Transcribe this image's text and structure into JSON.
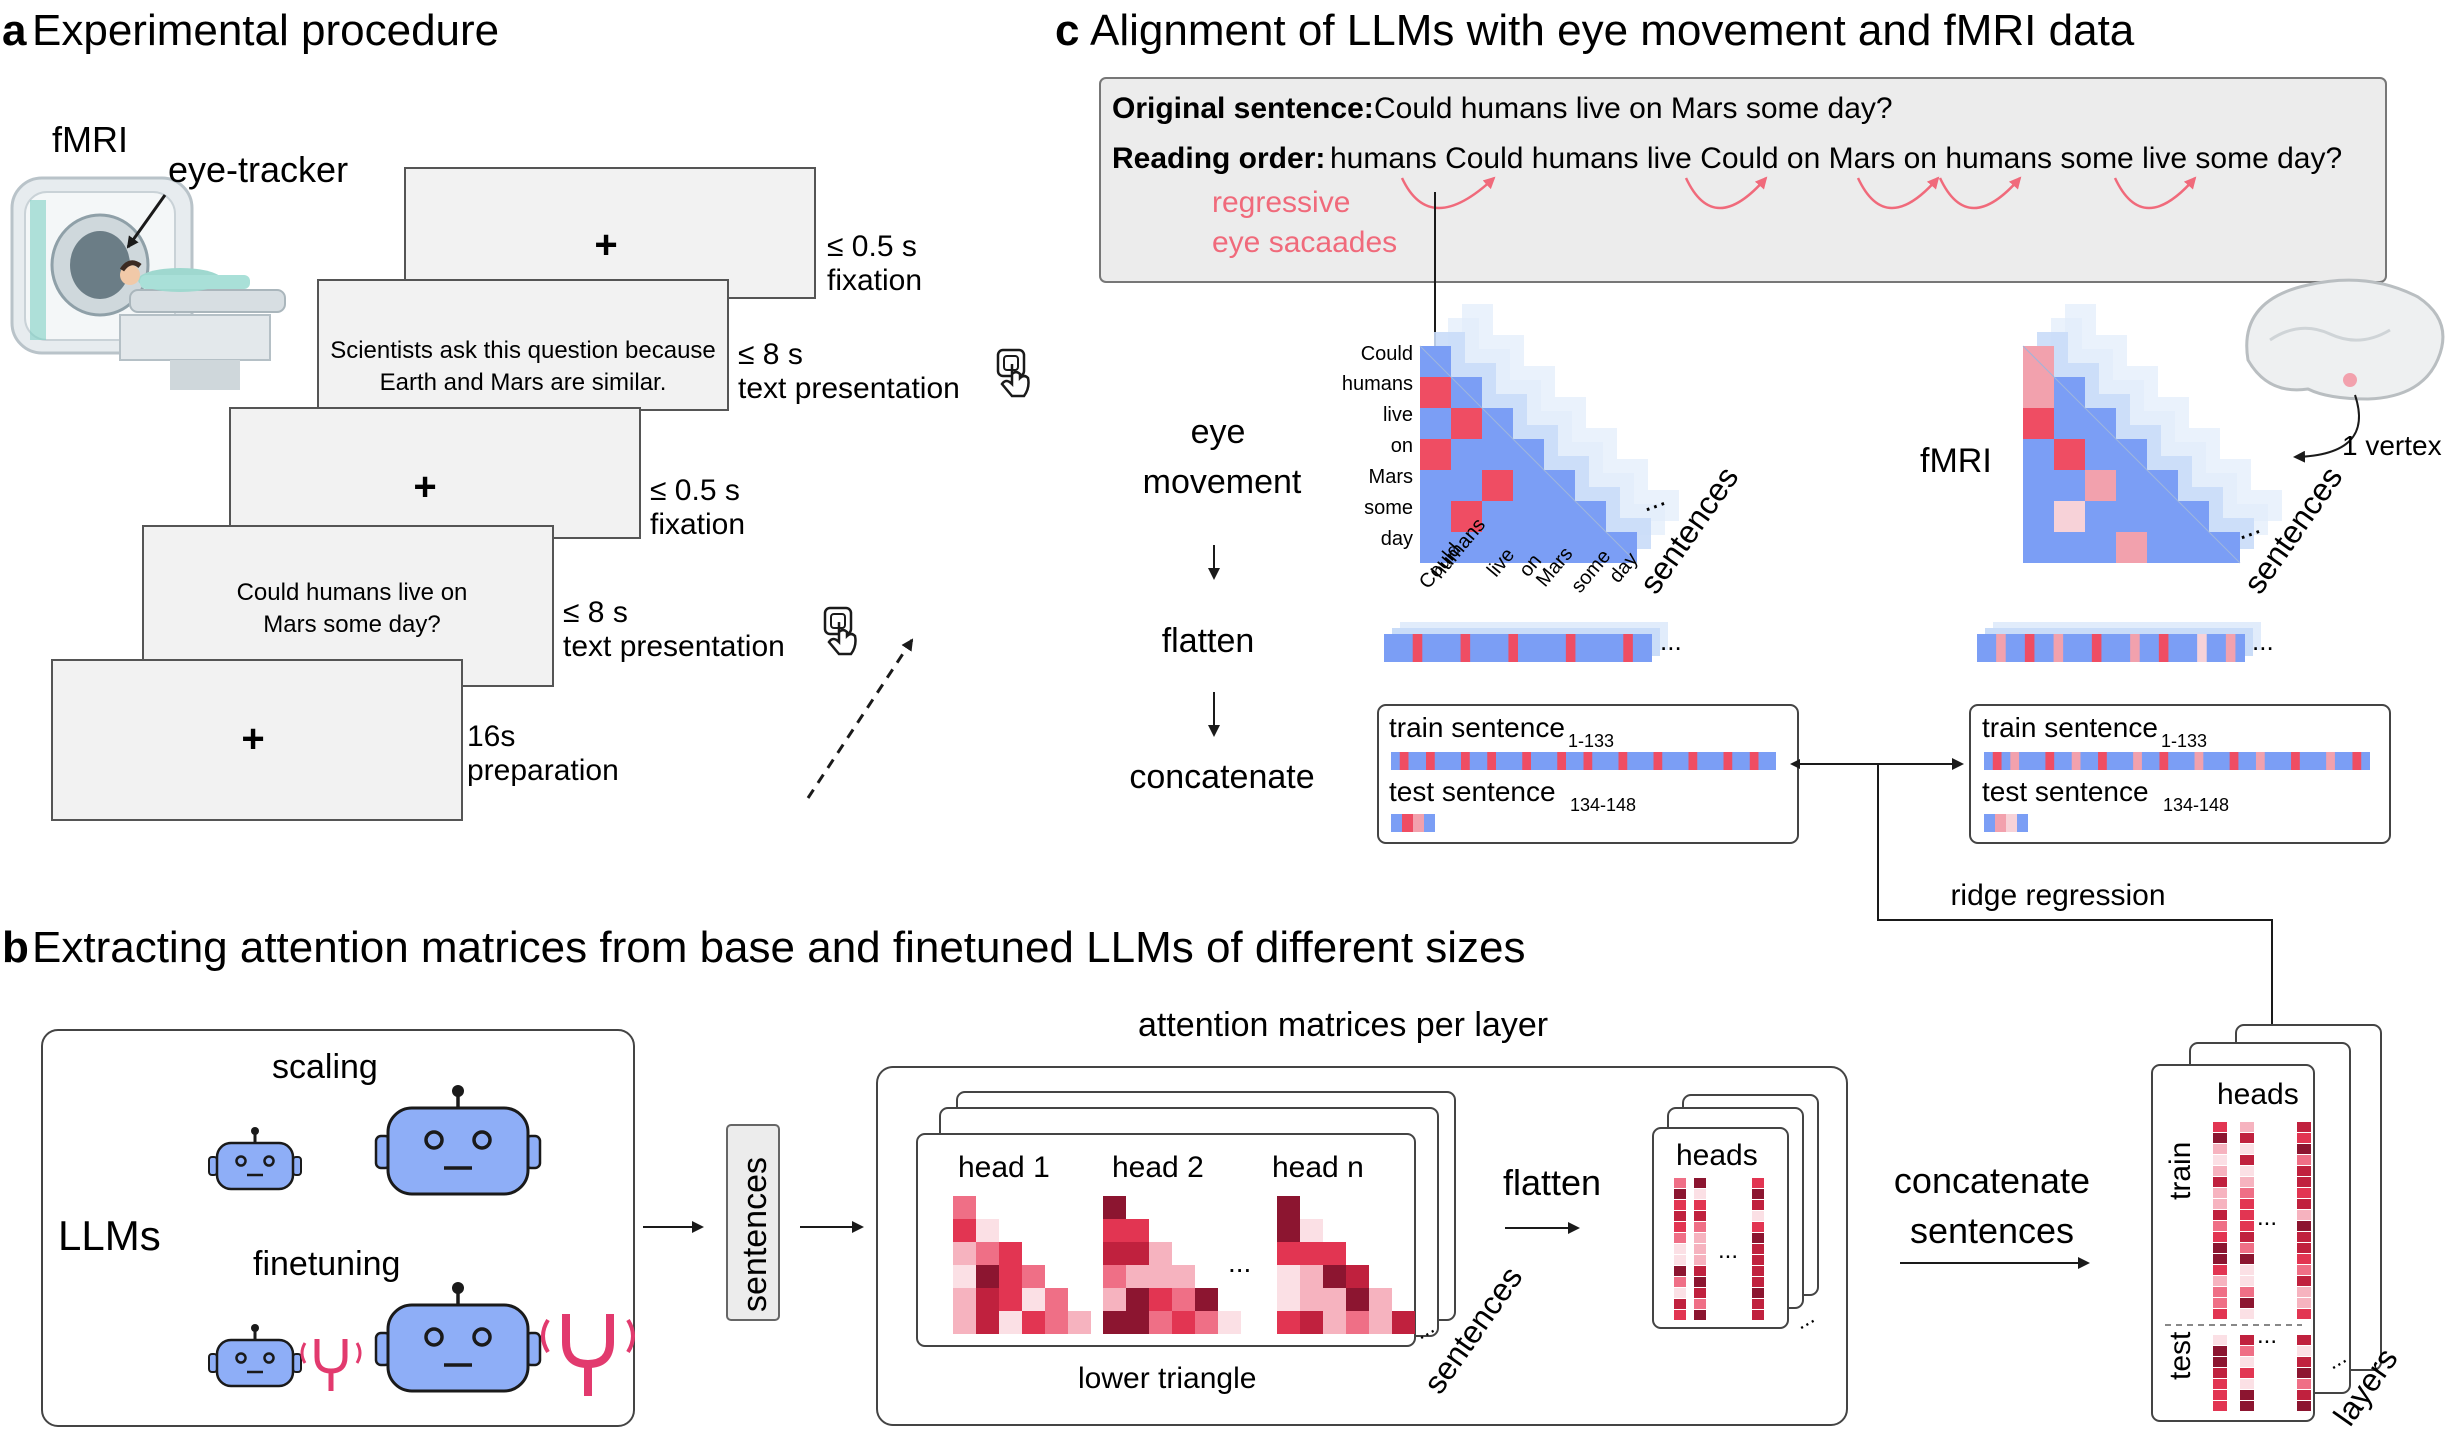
{
  "panels": {
    "a": {
      "letter": "a",
      "title": "Experimental procedure"
    },
    "b": {
      "letter": "b",
      "title": "Extracting attention matrices from base and finetuned LLMs of different sizes"
    },
    "c": {
      "letter": "c",
      "title": "Alignment of LLMs with eye movement and fMRI data"
    }
  },
  "procedure": {
    "fmri_label": "fMRI",
    "eye_tracker_label": "eye-tracker",
    "fixation_symbol": "+",
    "screen2_line1": "Scientists ask this question because",
    "screen2_line2": "Earth and Mars are similar.",
    "screen4_line1": "Could humans live on",
    "screen4_line2": "Mars some day?",
    "step1_time": "≤ 0.5 s",
    "step1_label": "fixation",
    "step2_time": "≤ 8 s",
    "step2_label": "text presentation",
    "step3_time": "≤ 0.5 s",
    "step3_label": "fixation",
    "step4_time": "≤ 8 s",
    "step4_label": "text presentation",
    "step5_time": "16s",
    "step5_label": "preparation"
  },
  "alignment": {
    "original_label": "Original sentence:",
    "original_text": "Could humans live on Mars some day?",
    "reading_label": "Reading order:",
    "reading_text": "humans Could humans live Could on Mars on humans some live some day?",
    "regressive_line1": "regressive",
    "regressive_line2": "eye sacaades",
    "step_eye_line1": "eye",
    "step_eye_line2": "movement",
    "step_flatten": "flatten",
    "step_concat": "concatenate",
    "row_words": [
      "Could",
      "humans",
      "live",
      "on",
      "Mars",
      "some",
      "day"
    ],
    "col_words": [
      "Could",
      "humans",
      "live",
      "on",
      "Mars",
      "some",
      "day"
    ],
    "sentences_label": "sentences",
    "ellipsis": "...",
    "fmri_label": "fMRI",
    "vertex_label": "1 vertex",
    "train_label": "train sentence",
    "train_sub": "1-133",
    "test_label": "test sentence",
    "test_sub": "134-148",
    "ridge_label": "ridge regression"
  },
  "extraction": {
    "llms_label": "LLMs",
    "scaling_label": "scaling",
    "finetuning_label": "finetuning",
    "sentences_box_label": "sentences",
    "attention_title": "attention matrices per layer",
    "head1": "head 1",
    "head2": "head 2",
    "headn": "head n",
    "ellipsis": "...",
    "lower_triangle": "lower triangle",
    "sentences_label": "sentences",
    "flatten_label": "flatten",
    "heads_label": "heads",
    "concat_line1": "concatenate",
    "concat_line2": "sentences",
    "heads_label2": "heads",
    "train_label": "train",
    "test_label": "test",
    "layers_label": "layers"
  },
  "colors": {
    "blue": "#7b9ef5",
    "light_blue": "#d6e6fb",
    "red": "#ef4d63",
    "pink": "#f2a1ad",
    "regressive": "#f06a7b",
    "screen_fill": "#f2f2f2",
    "box_fill": "#ececec",
    "robot": "#8eaef7",
    "tuning_fork": "#e23a6e"
  }
}
